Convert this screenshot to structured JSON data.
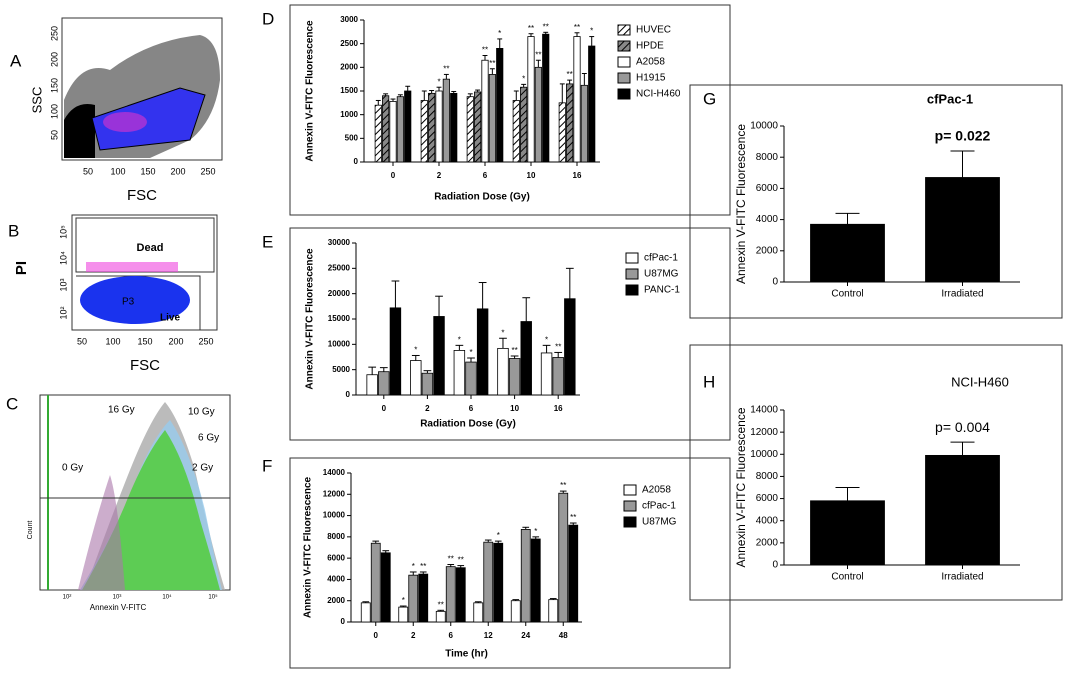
{
  "flow_panels": [
    {
      "panel": "A",
      "x_label": "FSC",
      "y_label": "SSC",
      "xticks": [
        "50",
        "100",
        "150",
        "200",
        "250"
      ],
      "yticks": [
        "250",
        "200",
        "150",
        "100",
        "50"
      ]
    },
    {
      "panel": "B",
      "x_label": "FSC",
      "y_label": "PI",
      "xticks": [
        "50",
        "100",
        "150",
        "200",
        "250"
      ],
      "yticks": [
        "10⁵",
        "10⁴",
        "10³",
        "10²"
      ],
      "gates": [
        "Dead",
        "P3",
        "Live"
      ]
    },
    {
      "panel": "C",
      "x_label": "Annexin V-FITC",
      "y_label": "Count",
      "xticks": [
        "10²",
        "10³",
        "10⁴",
        "10⁵"
      ],
      "curve_labels": [
        "16 Gy",
        "10 Gy",
        "6 Gy",
        "2 Gy",
        "0 Gy"
      ]
    }
  ],
  "chart_data": [
    {
      "type": "bar",
      "panel": "D",
      "y_label": "Annexin V-FITC Fluorescence",
      "x_label": "Radiation Dose (Gy)",
      "categories": [
        "0",
        "2",
        "6",
        "10",
        "16"
      ],
      "ylim": [
        0,
        3000
      ],
      "yticks": [
        0,
        500,
        1000,
        1500,
        2000,
        2500,
        3000
      ],
      "series": [
        {
          "name": "HUVEC",
          "color": "#ffffff",
          "hatch": true,
          "values": [
            1200,
            1300,
            1380,
            1300,
            1250
          ],
          "errors": [
            100,
            200,
            60,
            200,
            400
          ],
          "annotations": [
            null,
            null,
            null,
            null,
            null
          ]
        },
        {
          "name": "HPDE",
          "color": "#888888",
          "hatch": true,
          "values": [
            1400,
            1450,
            1480,
            1580,
            1650
          ],
          "errors": [
            40,
            60,
            40,
            60,
            80
          ],
          "annotations": [
            null,
            null,
            null,
            "*",
            "**"
          ]
        },
        {
          "name": "A2058",
          "color": "#ffffff",
          "hatch": false,
          "values": [
            1280,
            1500,
            2150,
            2650,
            2650
          ],
          "errors": [
            50,
            80,
            100,
            60,
            80
          ],
          "annotations": [
            null,
            "*",
            "**",
            "**",
            "**"
          ]
        },
        {
          "name": "H1915",
          "color": "#999999",
          "hatch": false,
          "values": [
            1380,
            1750,
            1850,
            2000,
            1620
          ],
          "errors": [
            40,
            100,
            120,
            150,
            250
          ],
          "annotations": [
            null,
            "**",
            "**",
            "**",
            null
          ]
        },
        {
          "name": "NCI-H460",
          "color": "#000000",
          "hatch": false,
          "values": [
            1500,
            1450,
            2400,
            2700,
            2450
          ],
          "errors": [
            100,
            40,
            200,
            40,
            200
          ],
          "annotations": [
            null,
            null,
            "*",
            "**",
            "*"
          ]
        }
      ]
    },
    {
      "type": "bar",
      "panel": "E",
      "y_label": "Annexin V-FITC Fluorescence",
      "x_label": "Radiation Dose (Gy)",
      "categories": [
        "0",
        "2",
        "6",
        "10",
        "16"
      ],
      "ylim": [
        0,
        30000
      ],
      "yticks": [
        0,
        5000,
        10000,
        15000,
        20000,
        25000,
        30000
      ],
      "series": [
        {
          "name": "cfPac-1",
          "color": "#ffffff",
          "hatch": false,
          "values": [
            4000,
            6800,
            8800,
            9200,
            8300
          ],
          "errors": [
            1500,
            1000,
            1000,
            2000,
            1500
          ],
          "annotations": [
            null,
            "*",
            "*",
            "*",
            "*"
          ]
        },
        {
          "name": "U87MG",
          "color": "#999999",
          "hatch": false,
          "values": [
            4600,
            4300,
            6500,
            7200,
            7400
          ],
          "errors": [
            800,
            500,
            800,
            500,
            1000
          ],
          "annotations": [
            null,
            null,
            "*",
            "**",
            "**"
          ]
        },
        {
          "name": "PANC-1",
          "color": "#000000",
          "hatch": false,
          "values": [
            17200,
            15500,
            17000,
            14500,
            19000
          ],
          "errors": [
            5300,
            4000,
            5200,
            4700,
            6000
          ],
          "annotations": [
            null,
            null,
            null,
            null,
            null
          ]
        }
      ]
    },
    {
      "type": "bar",
      "panel": "F",
      "y_label": "Annexin V-FITC Fluorescence",
      "x_label": "Time (hr)",
      "categories": [
        "0",
        "2",
        "6",
        "12",
        "24",
        "48"
      ],
      "ylim": [
        0,
        14000
      ],
      "yticks": [
        0,
        2000,
        4000,
        6000,
        8000,
        10000,
        12000,
        14000
      ],
      "series": [
        {
          "name": "A2058",
          "color": "#ffffff",
          "hatch": false,
          "values": [
            1800,
            1400,
            1000,
            1800,
            2000,
            2100
          ],
          "errors": [
            100,
            100,
            100,
            100,
            100,
            100
          ],
          "annotations": [
            null,
            "*",
            "**",
            null,
            null,
            null
          ]
        },
        {
          "name": "cfPac-1",
          "color": "#999999",
          "hatch": false,
          "values": [
            7400,
            4400,
            5200,
            7500,
            8700,
            12100
          ],
          "errors": [
            200,
            300,
            200,
            200,
            200,
            200
          ],
          "annotations": [
            null,
            "*",
            "**",
            null,
            null,
            "**"
          ]
        },
        {
          "name": "U87MG",
          "color": "#000000",
          "hatch": false,
          "values": [
            6500,
            4500,
            5100,
            7400,
            7800,
            9100
          ],
          "errors": [
            200,
            200,
            200,
            200,
            200,
            200
          ],
          "annotations": [
            null,
            "**",
            "**",
            "*",
            "*",
            "**"
          ]
        }
      ]
    },
    {
      "type": "bar",
      "panel": "G",
      "title": "cfPac-1",
      "y_label": "Annexin V-FITC Fluorescence",
      "annotation": "p= 0.022",
      "categories": [
        "Control",
        "Irradiated"
      ],
      "values": [
        3700,
        6700
      ],
      "errors": [
        700,
        1700
      ],
      "color": "#000000",
      "ylim": [
        0,
        10000
      ],
      "yticks": [
        0,
        2000,
        4000,
        6000,
        8000,
        10000
      ]
    },
    {
      "type": "bar",
      "panel": "H",
      "title": "NCI-H460",
      "y_label": "Annexin V-FITC Fluorescence",
      "annotation": "p= 0.004",
      "categories": [
        "Control",
        "Irradiated"
      ],
      "values": [
        5800,
        9900
      ],
      "errors": [
        1200,
        1200
      ],
      "color": "#000000",
      "ylim": [
        0,
        14000
      ],
      "yticks": [
        0,
        2000,
        4000,
        6000,
        8000,
        10000,
        12000,
        14000
      ]
    }
  ]
}
